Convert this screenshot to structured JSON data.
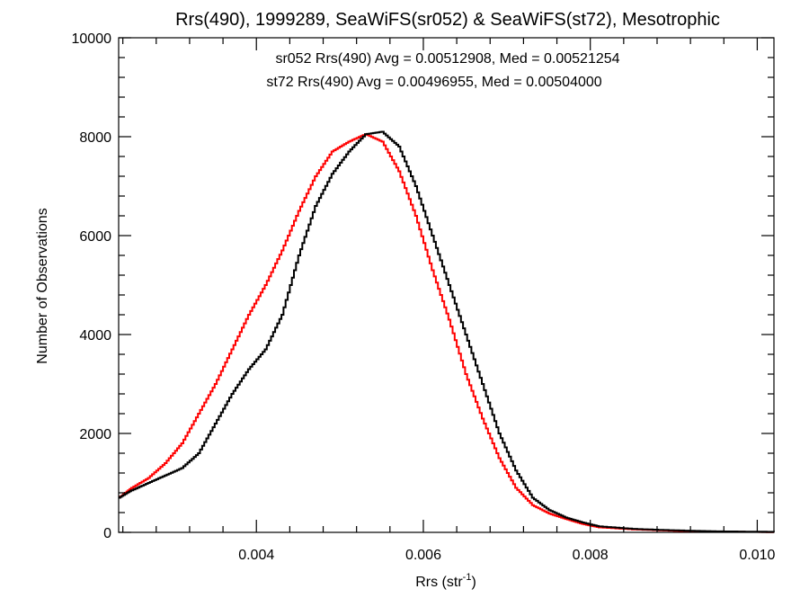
{
  "chart_data": {
    "type": "line",
    "title": "Rrs(490), 1999289, SeaWiFS(sr052) & SeaWiFS(st72), Mesotrophic",
    "xlabel": "Rrs (str",
    "xlabel_sup": "-1",
    "xlabel_close": ")",
    "ylabel": "Number of Observations",
    "xlim": [
      0.00235,
      0.0102
    ],
    "ylim": [
      0,
      10000
    ],
    "x_ticks": [
      0.004,
      0.006,
      0.008,
      0.01
    ],
    "x_tick_labels": [
      "0.004",
      "0.006",
      "0.008",
      "0.010"
    ],
    "y_ticks": [
      0,
      2000,
      4000,
      6000,
      8000,
      10000
    ],
    "y_tick_labels": [
      "0",
      "2000",
      "4000",
      "6000",
      "8000",
      "10000"
    ],
    "grid": false,
    "step": true,
    "annotations": [
      "sr052 Rrs(490) Avg = 0.00512908, Med = 0.00521254",
      "st72 Rrs(490) Avg = 0.00496955, Med = 0.00504000"
    ],
    "annotation_colors": [
      "#000000",
      "#ff0000"
    ],
    "series": [
      {
        "color": "#000000",
        "x": [
          0.00235,
          0.0025,
          0.0027,
          0.0029,
          0.0031,
          0.0033,
          0.0035,
          0.0037,
          0.0039,
          0.0041,
          0.0043,
          0.0045,
          0.0047,
          0.0049,
          0.0051,
          0.0053,
          0.0055,
          0.0057,
          0.0059,
          0.0061,
          0.0063,
          0.0065,
          0.0067,
          0.0069,
          0.0071,
          0.0073,
          0.0075,
          0.0077,
          0.0079,
          0.0081,
          0.0085,
          0.009,
          0.0095,
          0.0102
        ],
        "y": [
          700,
          850,
          1000,
          1150,
          1300,
          1600,
          2200,
          2800,
          3300,
          3700,
          4400,
          5600,
          6600,
          7250,
          7700,
          8050,
          8100,
          7800,
          7000,
          6000,
          5000,
          4000,
          3000,
          2000,
          1250,
          700,
          450,
          300,
          200,
          120,
          70,
          40,
          20,
          10
        ]
      },
      {
        "color": "#ff0000",
        "x": [
          0.00235,
          0.0025,
          0.0027,
          0.0029,
          0.0031,
          0.0033,
          0.0035,
          0.0037,
          0.0039,
          0.0041,
          0.0043,
          0.0045,
          0.0047,
          0.0049,
          0.0051,
          0.0053,
          0.0055,
          0.0057,
          0.0059,
          0.0061,
          0.0063,
          0.0065,
          0.0067,
          0.0069,
          0.0071,
          0.0073,
          0.0075,
          0.0077,
          0.0079,
          0.0081,
          0.0085,
          0.009,
          0.0095,
          0.0102
        ],
        "y": [
          700,
          900,
          1100,
          1400,
          1800,
          2400,
          3000,
          3700,
          4400,
          5000,
          5700,
          6500,
          7200,
          7700,
          7900,
          8050,
          7900,
          7300,
          6400,
          5300,
          4300,
          3200,
          2300,
          1500,
          900,
          550,
          380,
          270,
          170,
          100,
          60,
          30,
          15,
          5
        ]
      }
    ]
  }
}
